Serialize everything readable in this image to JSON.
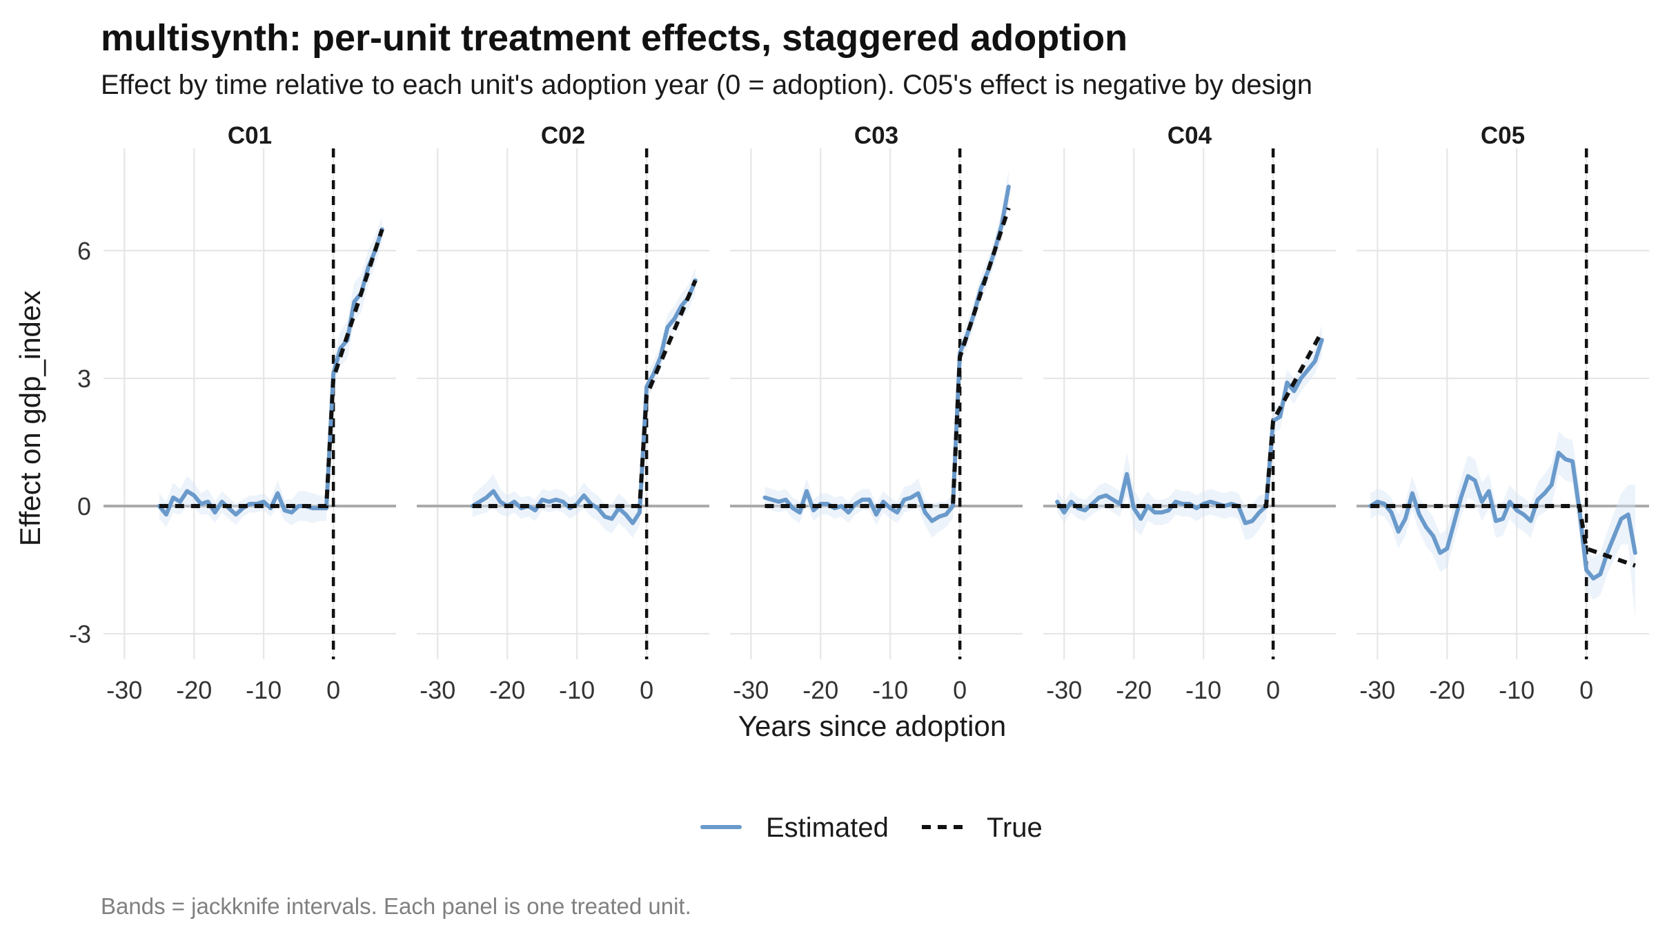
{
  "header": {
    "title": "multisynth: per-unit treatment effects, staggered adoption",
    "subtitle": "Effect by time relative to each unit's adoption year (0 = adoption). C05's effect is negative by design"
  },
  "caption": "Bands = jackknife intervals. Each panel is one treated unit.",
  "legend": {
    "estimated_label": "Estimated",
    "true_label": "True"
  },
  "colors": {
    "estimated": "#6a9acb",
    "band": "#d7e5f4",
    "true": "#111111",
    "zero_line": "#aaaaaa",
    "grid": "#e6e6e6"
  },
  "chart_data": {
    "type": "line",
    "facet_by": "unit",
    "xlabel": "Years since adoption",
    "ylabel": "Effect on gdp_index",
    "xlim": [
      -33,
      9
    ],
    "ylim": [
      -3.6,
      8.4
    ],
    "x_ticks": [
      -30,
      -20,
      -10,
      0
    ],
    "x_tick_labels": [
      "-30",
      "-20",
      "-10",
      "0"
    ],
    "y_ticks": [
      -3,
      0,
      3,
      6
    ],
    "y_tick_labels": [
      "-3",
      "0",
      "3",
      "6"
    ],
    "adoption_marker_x": 0,
    "grid": true,
    "legend_position": "bottom",
    "series_names": [
      "Estimated",
      "True"
    ],
    "panels": [
      {
        "unit": "C01",
        "estimated": {
          "x": [
            -25,
            -24,
            -23,
            -22,
            -21,
            -20,
            -19,
            -18,
            -17,
            -16,
            -15,
            -14,
            -13,
            -12,
            -11,
            -10,
            -9,
            -8,
            -7,
            -6,
            -5,
            -4,
            -3,
            -2,
            -1,
            0,
            1,
            2,
            3,
            4,
            5,
            6,
            7
          ],
          "y": [
            0,
            -0.2,
            0.2,
            0.1,
            0.35,
            0.25,
            0.05,
            0.1,
            -0.15,
            0.1,
            -0.05,
            -0.2,
            -0.05,
            0.05,
            0.05,
            0.1,
            -0.05,
            0.3,
            -0.1,
            -0.15,
            0,
            0,
            -0.05,
            -0.05,
            -0.05,
            3.1,
            3.7,
            3.9,
            4.8,
            5,
            5.6,
            6,
            6.5
          ]
        },
        "band_half_width": [
          0.3,
          0.3,
          0.35,
          0.3,
          0.35,
          0.3,
          0.25,
          0.3,
          0.25,
          0.25,
          0.25,
          0.25,
          0.2,
          0.2,
          0.2,
          0.2,
          0.2,
          0.3,
          0.25,
          0.3,
          0.35,
          0.35,
          0.35,
          0.3,
          0.3,
          0.4,
          0.4,
          0.45,
          0.45,
          0.45,
          0.4,
          0.35,
          0.3
        ],
        "true": {
          "x": [
            -25,
            -1,
            0,
            7
          ],
          "y": [
            0,
            0,
            3,
            6.5
          ]
        }
      },
      {
        "unit": "C02",
        "estimated": {
          "x": [
            -25,
            -24,
            -23,
            -22,
            -21,
            -20,
            -19,
            -18,
            -17,
            -16,
            -15,
            -14,
            -13,
            -12,
            -11,
            -10,
            -9,
            -8,
            -7,
            -6,
            -5,
            -4,
            -3,
            -2,
            -1,
            0,
            1,
            2,
            3,
            4,
            5,
            6,
            7
          ],
          "y": [
            0,
            0.1,
            0.2,
            0.35,
            0.1,
            0,
            0.1,
            -0.05,
            0,
            -0.1,
            0.15,
            0.1,
            0.15,
            0.1,
            -0.05,
            0.05,
            0.25,
            0.05,
            -0.05,
            -0.25,
            -0.3,
            -0.05,
            -0.2,
            -0.4,
            -0.15,
            2.8,
            3.1,
            3.5,
            4.2,
            4.4,
            4.7,
            4.9,
            5.3
          ],
          "note_none": ""
        },
        "band_half_width": [
          0.25,
          0.3,
          0.35,
          0.4,
          0.3,
          0.25,
          0.25,
          0.25,
          0.25,
          0.25,
          0.25,
          0.25,
          0.25,
          0.25,
          0.25,
          0.25,
          0.3,
          0.3,
          0.3,
          0.3,
          0.35,
          0.35,
          0.35,
          0.35,
          0.3,
          0.3,
          0.3,
          0.3,
          0.3,
          0.3,
          0.3,
          0.3,
          0.3
        ],
        "true": {
          "x": [
            -25,
            -1,
            0,
            7
          ],
          "y": [
            0,
            0,
            2.6,
            5.3
          ]
        }
      },
      {
        "unit": "C03",
        "estimated": {
          "x": [
            -28,
            -27,
            -26,
            -25,
            -24,
            -23,
            -22,
            -21,
            -20,
            -19,
            -18,
            -17,
            -16,
            -15,
            -14,
            -13,
            -12,
            -11,
            -10,
            -9,
            -8,
            -7,
            -6,
            -5,
            -4,
            -3,
            -2,
            -1,
            0,
            1,
            2,
            3,
            4,
            5,
            6,
            7
          ],
          "y": [
            0.2,
            0.15,
            0.1,
            0.15,
            -0.05,
            -0.15,
            0.35,
            -0.1,
            0.05,
            0.05,
            -0.05,
            0,
            -0.15,
            0.05,
            0.15,
            0.15,
            -0.2,
            0.1,
            -0.05,
            -0.15,
            0.15,
            0.2,
            0.3,
            -0.15,
            -0.35,
            -0.25,
            -0.2,
            0,
            3.6,
            4,
            4.5,
            5.1,
            5.5,
            6,
            6.6,
            7.5
          ],
          "note_none": ""
        },
        "band_half_width": [
          0.25,
          0.25,
          0.25,
          0.25,
          0.25,
          0.25,
          0.3,
          0.25,
          0.25,
          0.25,
          0.25,
          0.25,
          0.25,
          0.25,
          0.25,
          0.25,
          0.25,
          0.25,
          0.25,
          0.25,
          0.3,
          0.3,
          0.35,
          0.3,
          0.4,
          0.35,
          0.3,
          0.3,
          0.3,
          0.3,
          0.3,
          0.3,
          0.3,
          0.3,
          0.35,
          0.4
        ],
        "true": {
          "x": [
            -28,
            -1,
            0,
            7
          ],
          "y": [
            0,
            0,
            3.5,
            7
          ]
        }
      },
      {
        "unit": "C04",
        "estimated": {
          "x": [
            -31,
            -30,
            -29,
            -28,
            -27,
            -26,
            -25,
            -24,
            -23,
            -22,
            -21,
            -20,
            -19,
            -18,
            -17,
            -16,
            -15,
            -14,
            -13,
            -12,
            -11,
            -10,
            -9,
            -8,
            -7,
            -6,
            -5,
            -4,
            -3,
            -2,
            -1,
            0,
            1,
            2,
            3,
            4,
            5,
            6,
            7
          ],
          "y": [
            0.1,
            -0.15,
            0.1,
            -0.05,
            -0.1,
            0.05,
            0.2,
            0.25,
            0.15,
            0.05,
            0.75,
            -0.05,
            -0.3,
            0,
            -0.15,
            -0.15,
            -0.1,
            0.1,
            0.05,
            0.05,
            -0.05,
            0.05,
            0.1,
            0.05,
            0,
            0.05,
            0,
            -0.4,
            -0.35,
            -0.15,
            0,
            2,
            2.1,
            2.9,
            2.7,
            3,
            3.2,
            3.4,
            3.9
          ],
          "note_none": ""
        },
        "band_half_width": [
          0.25,
          0.25,
          0.25,
          0.25,
          0.25,
          0.25,
          0.3,
          0.3,
          0.3,
          0.3,
          0.5,
          0.45,
          0.4,
          0.35,
          0.3,
          0.3,
          0.3,
          0.3,
          0.3,
          0.3,
          0.3,
          0.3,
          0.3,
          0.3,
          0.3,
          0.3,
          0.3,
          0.4,
          0.4,
          0.4,
          0.3,
          0.3,
          0.3,
          0.3,
          0.3,
          0.3,
          0.3,
          0.3,
          0.35
        ],
        "true": {
          "x": [
            -31,
            -1,
            0,
            7
          ],
          "y": [
            0,
            0,
            2,
            4.1
          ]
        }
      },
      {
        "unit": "C05",
        "estimated": {
          "x": [
            -31,
            -30,
            -29,
            -28,
            -27,
            -26,
            -25,
            -24,
            -23,
            -22,
            -21,
            -20,
            -19,
            -18,
            -17,
            -16,
            -15,
            -14,
            -13,
            -12,
            -11,
            -10,
            -9,
            -8,
            -7,
            -6,
            -5,
            -4,
            -3,
            -2,
            -1,
            0,
            1,
            2,
            3,
            4,
            5,
            6,
            7
          ],
          "y": [
            0,
            0.1,
            0.05,
            -0.15,
            -0.6,
            -0.3,
            0.3,
            -0.2,
            -0.5,
            -0.7,
            -1.1,
            -1,
            -0.4,
            0.2,
            0.7,
            0.6,
            0.1,
            0.35,
            -0.35,
            -0.3,
            0.1,
            -0.1,
            -0.2,
            -0.35,
            0.15,
            0.3,
            0.5,
            1.25,
            1.1,
            1.05,
            -0.1,
            -1.5,
            -1.7,
            -1.6,
            -1.1,
            -0.7,
            -0.3,
            -0.2,
            -1.1
          ],
          "note_none": ""
        },
        "band_half_width": [
          0.3,
          0.3,
          0.3,
          0.35,
          0.4,
          0.4,
          0.4,
          0.4,
          0.45,
          0.45,
          0.45,
          0.45,
          0.45,
          0.45,
          0.5,
          0.5,
          0.45,
          0.4,
          0.4,
          0.4,
          0.4,
          0.4,
          0.4,
          0.4,
          0.4,
          0.45,
          0.5,
          0.5,
          0.5,
          0.5,
          0.55,
          0.5,
          0.5,
          0.5,
          0.5,
          0.55,
          0.6,
          0.7,
          1.6
        ],
        "true": {
          "x": [
            -31,
            -1,
            0,
            7
          ],
          "y": [
            0,
            0,
            -1,
            -1.4
          ]
        }
      }
    ]
  }
}
